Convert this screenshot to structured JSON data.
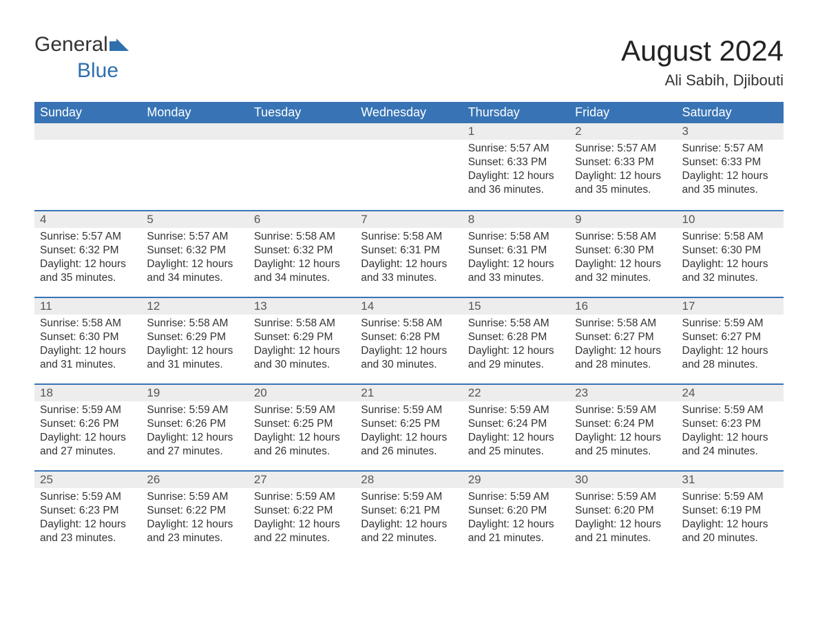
{
  "logo": {
    "text1": "General",
    "text2": "Blue",
    "accent_color": "#2f6fae"
  },
  "title": "August 2024",
  "location": "Ali Sabih, Djibouti",
  "colors": {
    "header_bg": "#3874b5",
    "header_text": "#ffffff",
    "daynum_bg": "#ededed",
    "border": "#3874b5",
    "body_text": "#333333"
  },
  "days_of_week": [
    "Sunday",
    "Monday",
    "Tuesday",
    "Wednesday",
    "Thursday",
    "Friday",
    "Saturday"
  ],
  "weeks": [
    [
      null,
      null,
      null,
      null,
      {
        "n": "1",
        "sr": "5:57 AM",
        "ss": "6:33 PM",
        "dl": "12 hours and 36 minutes."
      },
      {
        "n": "2",
        "sr": "5:57 AM",
        "ss": "6:33 PM",
        "dl": "12 hours and 35 minutes."
      },
      {
        "n": "3",
        "sr": "5:57 AM",
        "ss": "6:33 PM",
        "dl": "12 hours and 35 minutes."
      }
    ],
    [
      {
        "n": "4",
        "sr": "5:57 AM",
        "ss": "6:32 PM",
        "dl": "12 hours and 35 minutes."
      },
      {
        "n": "5",
        "sr": "5:57 AM",
        "ss": "6:32 PM",
        "dl": "12 hours and 34 minutes."
      },
      {
        "n": "6",
        "sr": "5:58 AM",
        "ss": "6:32 PM",
        "dl": "12 hours and 34 minutes."
      },
      {
        "n": "7",
        "sr": "5:58 AM",
        "ss": "6:31 PM",
        "dl": "12 hours and 33 minutes."
      },
      {
        "n": "8",
        "sr": "5:58 AM",
        "ss": "6:31 PM",
        "dl": "12 hours and 33 minutes."
      },
      {
        "n": "9",
        "sr": "5:58 AM",
        "ss": "6:30 PM",
        "dl": "12 hours and 32 minutes."
      },
      {
        "n": "10",
        "sr": "5:58 AM",
        "ss": "6:30 PM",
        "dl": "12 hours and 32 minutes."
      }
    ],
    [
      {
        "n": "11",
        "sr": "5:58 AM",
        "ss": "6:30 PM",
        "dl": "12 hours and 31 minutes."
      },
      {
        "n": "12",
        "sr": "5:58 AM",
        "ss": "6:29 PM",
        "dl": "12 hours and 31 minutes."
      },
      {
        "n": "13",
        "sr": "5:58 AM",
        "ss": "6:29 PM",
        "dl": "12 hours and 30 minutes."
      },
      {
        "n": "14",
        "sr": "5:58 AM",
        "ss": "6:28 PM",
        "dl": "12 hours and 30 minutes."
      },
      {
        "n": "15",
        "sr": "5:58 AM",
        "ss": "6:28 PM",
        "dl": "12 hours and 29 minutes."
      },
      {
        "n": "16",
        "sr": "5:58 AM",
        "ss": "6:27 PM",
        "dl": "12 hours and 28 minutes."
      },
      {
        "n": "17",
        "sr": "5:59 AM",
        "ss": "6:27 PM",
        "dl": "12 hours and 28 minutes."
      }
    ],
    [
      {
        "n": "18",
        "sr": "5:59 AM",
        "ss": "6:26 PM",
        "dl": "12 hours and 27 minutes."
      },
      {
        "n": "19",
        "sr": "5:59 AM",
        "ss": "6:26 PM",
        "dl": "12 hours and 27 minutes."
      },
      {
        "n": "20",
        "sr": "5:59 AM",
        "ss": "6:25 PM",
        "dl": "12 hours and 26 minutes."
      },
      {
        "n": "21",
        "sr": "5:59 AM",
        "ss": "6:25 PM",
        "dl": "12 hours and 26 minutes."
      },
      {
        "n": "22",
        "sr": "5:59 AM",
        "ss": "6:24 PM",
        "dl": "12 hours and 25 minutes."
      },
      {
        "n": "23",
        "sr": "5:59 AM",
        "ss": "6:24 PM",
        "dl": "12 hours and 25 minutes."
      },
      {
        "n": "24",
        "sr": "5:59 AM",
        "ss": "6:23 PM",
        "dl": "12 hours and 24 minutes."
      }
    ],
    [
      {
        "n": "25",
        "sr": "5:59 AM",
        "ss": "6:23 PM",
        "dl": "12 hours and 23 minutes."
      },
      {
        "n": "26",
        "sr": "5:59 AM",
        "ss": "6:22 PM",
        "dl": "12 hours and 23 minutes."
      },
      {
        "n": "27",
        "sr": "5:59 AM",
        "ss": "6:22 PM",
        "dl": "12 hours and 22 minutes."
      },
      {
        "n": "28",
        "sr": "5:59 AM",
        "ss": "6:21 PM",
        "dl": "12 hours and 22 minutes."
      },
      {
        "n": "29",
        "sr": "5:59 AM",
        "ss": "6:20 PM",
        "dl": "12 hours and 21 minutes."
      },
      {
        "n": "30",
        "sr": "5:59 AM",
        "ss": "6:20 PM",
        "dl": "12 hours and 21 minutes."
      },
      {
        "n": "31",
        "sr": "5:59 AM",
        "ss": "6:19 PM",
        "dl": "12 hours and 20 minutes."
      }
    ]
  ],
  "labels": {
    "sunrise": "Sunrise:",
    "sunset": "Sunset:",
    "daylight": "Daylight:"
  }
}
